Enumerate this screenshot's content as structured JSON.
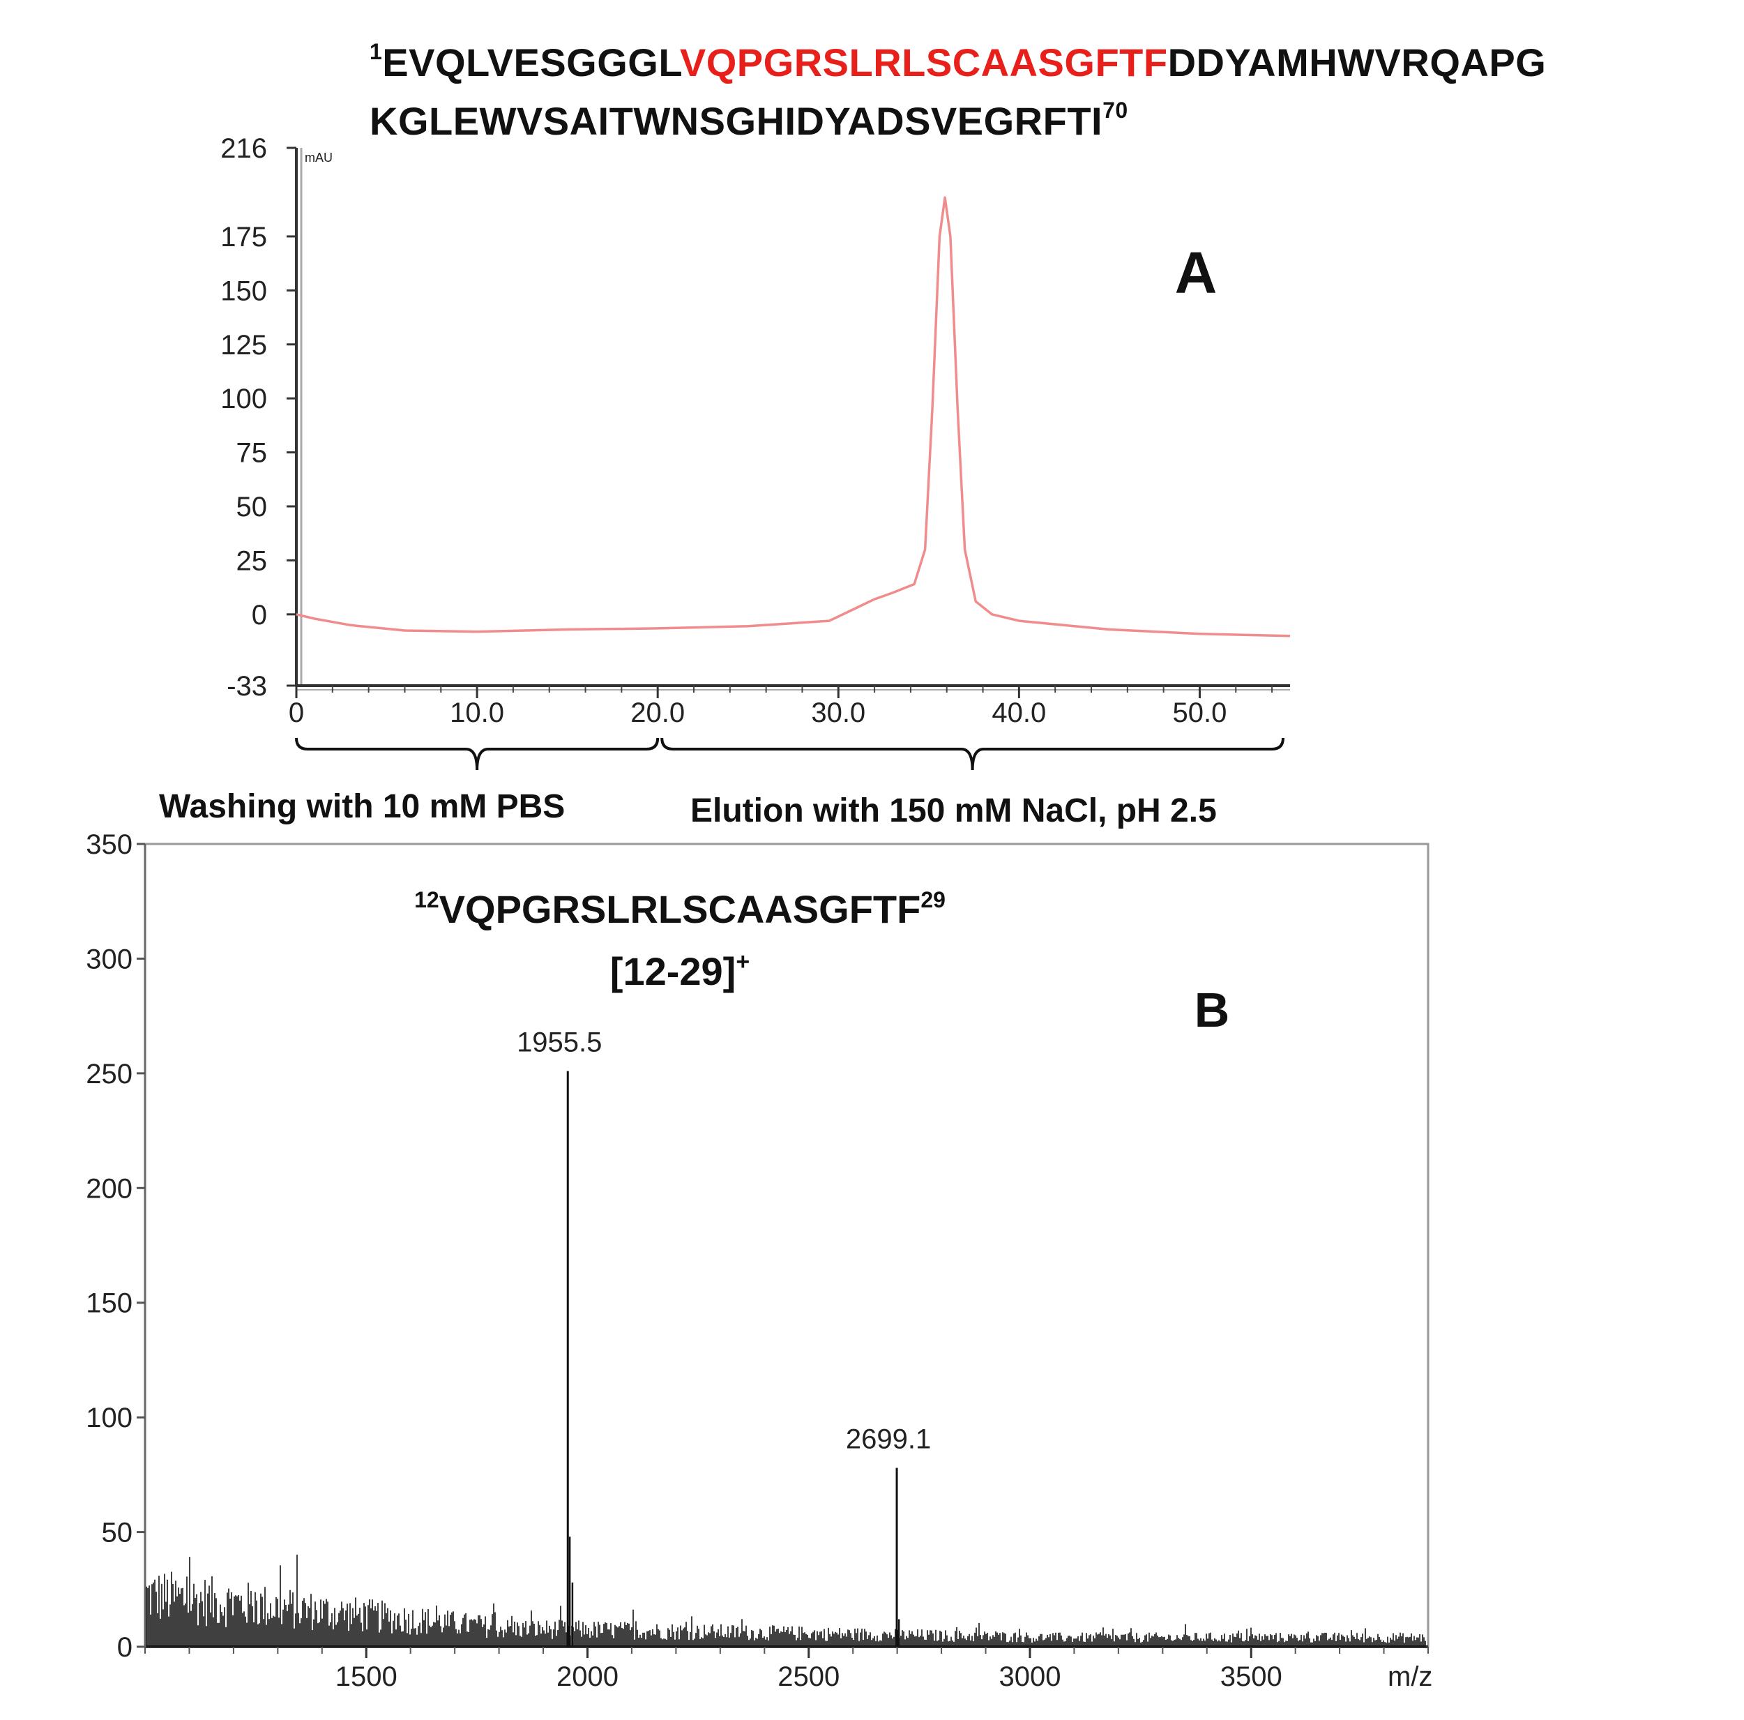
{
  "sequence": {
    "line1_start_num": "1",
    "line1_pre": "EVQLVESGGGL",
    "line1_highlight": "VQPGRSLRLSCAASGFTF",
    "line1_post": "DDYAMHWVRQAPG",
    "line2_text": "KGLEWVSAITWNSGHIDYADSVEGRFTI",
    "line2_end_num": "70",
    "highlight_color": "#e8201c"
  },
  "chart_data": [
    {
      "type": "line",
      "panel_label": "A",
      "y_unit": "mAU",
      "ylim": [
        -33,
        216
      ],
      "xlim": [
        0,
        55
      ],
      "yticks": [
        "216",
        "175",
        "150",
        "125",
        "100",
        "75",
        "50",
        "25",
        "0",
        "-33"
      ],
      "xticks": [
        "0",
        "10.0",
        "20.0",
        "30.0",
        "40.0",
        "50.0"
      ],
      "line_color": "#f08c8c",
      "series": [
        {
          "x": [
            0,
            1,
            3,
            6,
            10,
            15,
            20,
            25,
            29.5,
            31,
            32,
            33,
            34.2,
            34.8,
            35.2,
            35.6,
            35.9,
            36.2,
            36.6,
            37,
            37.6,
            38.5,
            40,
            45,
            50,
            55
          ],
          "y": [
            0,
            -2,
            -5,
            -7.5,
            -8,
            -7,
            -6.5,
            -5.5,
            -3,
            3,
            7,
            10,
            14,
            30,
            95,
            175,
            193,
            175,
            95,
            30,
            6,
            0,
            -3,
            -7,
            -9,
            -10
          ]
        }
      ],
      "regions": [
        {
          "label": "Washing  with 10 mM PBS",
          "from": 0,
          "to": 20
        },
        {
          "label": "Elution with 150 mM  NaCl, pH 2.5",
          "from": 20,
          "to": 55
        }
      ]
    },
    {
      "type": "line",
      "panel_label": "B",
      "xlabel": "m/z",
      "xlim": [
        1000,
        3900
      ],
      "ylim": [
        0,
        350
      ],
      "yticks": [
        "350",
        "300",
        "250",
        "200",
        "150",
        "100",
        "50",
        "0"
      ],
      "xticks": [
        "1500",
        "2000",
        "2500",
        "3000",
        "3500"
      ],
      "annotation_line1_start": "12",
      "annotation_line1_seq": "VQPGRSLRLSCAASGFTF",
      "annotation_line1_end": "29",
      "annotation_line2": "[12-29]",
      "annotation_line2_sup": "+",
      "peaks": [
        {
          "mz": 1955.5,
          "intensity": 251,
          "label": "1955.5"
        },
        {
          "mz": 2699.1,
          "intensity": 78,
          "label": "2699.1"
        }
      ]
    }
  ]
}
